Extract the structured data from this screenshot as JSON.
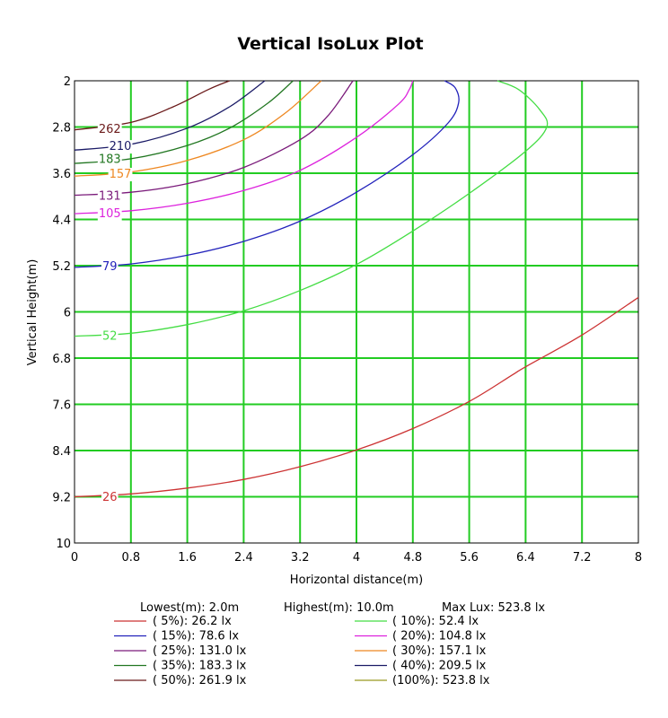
{
  "chart_data": {
    "type": "line",
    "title": "Vertical IsoLux Plot",
    "xlabel": "Horizontal distance(m)",
    "ylabel": "Vertical Height(m)",
    "xlim": [
      0,
      8
    ],
    "ylim": [
      2,
      10
    ],
    "y_inverted": true,
    "x_ticks": [
      "0",
      "0.8",
      "1.6",
      "2.4",
      "3.2",
      "4",
      "4.8",
      "5.6",
      "6.4",
      "7.2",
      "8"
    ],
    "y_ticks": [
      "2",
      "2.8",
      "3.6",
      "4.4",
      "5.2",
      "6",
      "6.8",
      "7.6",
      "8.4",
      "9.2",
      "10"
    ],
    "grid": true,
    "grid_color": "#22cc22",
    "summary": {
      "lowest": "Lowest(m): 2.0m",
      "highest": "Highest(m): 10.0m",
      "max_lux": "Max Lux: 523.8 lx"
    },
    "series": [
      {
        "name": "26",
        "legend": "(  5%):  26.2 lx",
        "color": "#cc3333",
        "label_at": [
          0.5,
          9.19
        ],
        "x": [
          0,
          0.8,
          1.6,
          2.4,
          3.2,
          4.0,
          4.8,
          5.6,
          6.2,
          6.4,
          7.2,
          8.0
        ],
        "y": [
          9.2,
          9.15,
          9.05,
          8.9,
          8.68,
          8.39,
          8.02,
          7.55,
          7.1,
          6.95,
          6.4,
          5.75
        ]
      },
      {
        "name": "52",
        "legend": "( 10%):  52.4 lx",
        "color": "#44dd44",
        "label_at": [
          0.5,
          6.4
        ],
        "x": [
          0,
          0.8,
          1.6,
          2.4,
          3.2,
          4.0,
          4.8,
          5.6,
          6.4,
          6.7,
          6.6,
          6.3,
          6.0
        ],
        "y": [
          6.42,
          6.37,
          6.22,
          5.98,
          5.63,
          5.18,
          4.6,
          3.95,
          3.22,
          2.8,
          2.5,
          2.15,
          2.0
        ]
      },
      {
        "name": "79",
        "legend": "( 15%):  78.6 lx",
        "color": "#2222bb",
        "label_at": [
          0.5,
          5.2
        ],
        "x": [
          0,
          0.8,
          1.6,
          2.4,
          3.2,
          4.0,
          4.8,
          5.3,
          5.45,
          5.4,
          5.25
        ],
        "y": [
          5.23,
          5.17,
          5.02,
          4.78,
          4.43,
          3.93,
          3.28,
          2.73,
          2.38,
          2.12,
          2.0
        ]
      },
      {
        "name": "105",
        "legend": "( 20%): 104.8 lx",
        "color": "#dd22dd",
        "label_at": [
          0.5,
          4.28
        ],
        "x": [
          0,
          0.8,
          1.6,
          2.4,
          3.2,
          4.0,
          4.6,
          4.75,
          4.8
        ],
        "y": [
          4.3,
          4.25,
          4.12,
          3.9,
          3.55,
          2.98,
          2.4,
          2.15,
          2.0
        ]
      },
      {
        "name": "131",
        "legend": "( 25%): 131.0 lx",
        "color": "#7a1a7a",
        "label_at": [
          0.5,
          3.98
        ],
        "x": [
          0,
          0.8,
          1.6,
          2.4,
          3.2,
          3.6,
          3.95
        ],
        "y": [
          3.98,
          3.93,
          3.78,
          3.5,
          3.02,
          2.6,
          2.0
        ]
      },
      {
        "name": "157",
        "legend": "( 30%): 157.1 lx",
        "color": "#ee8822",
        "label_at": [
          0.65,
          3.6
        ],
        "x": [
          0,
          0.8,
          1.6,
          2.4,
          3.0,
          3.5
        ],
        "y": [
          3.65,
          3.58,
          3.38,
          3.02,
          2.55,
          2.0
        ]
      },
      {
        "name": "183",
        "legend": "( 35%): 183.3 lx",
        "color": "#227722",
        "label_at": [
          0.5,
          3.34
        ],
        "x": [
          0,
          0.8,
          1.6,
          2.2,
          2.75,
          3.1
        ],
        "y": [
          3.43,
          3.35,
          3.12,
          2.82,
          2.38,
          2.0
        ]
      },
      {
        "name": "210",
        "legend": "( 40%): 209.5 lx",
        "color": "#1a1a66",
        "label_at": [
          0.65,
          3.12
        ],
        "x": [
          0,
          0.8,
          1.6,
          2.2,
          2.7
        ],
        "y": [
          3.2,
          3.1,
          2.82,
          2.45,
          2.0
        ]
      },
      {
        "name": "262",
        "legend": "( 50%): 261.9 lx",
        "color": "#6b1a1a",
        "label_at": [
          0.5,
          2.82
        ],
        "x": [
          0,
          0.8,
          1.4,
          1.9,
          2.2
        ],
        "y": [
          2.85,
          2.72,
          2.45,
          2.15,
          2.0
        ]
      },
      {
        "legend": "(100%): 523.8 lx",
        "color": "#999922",
        "x": [],
        "y": []
      }
    ]
  }
}
